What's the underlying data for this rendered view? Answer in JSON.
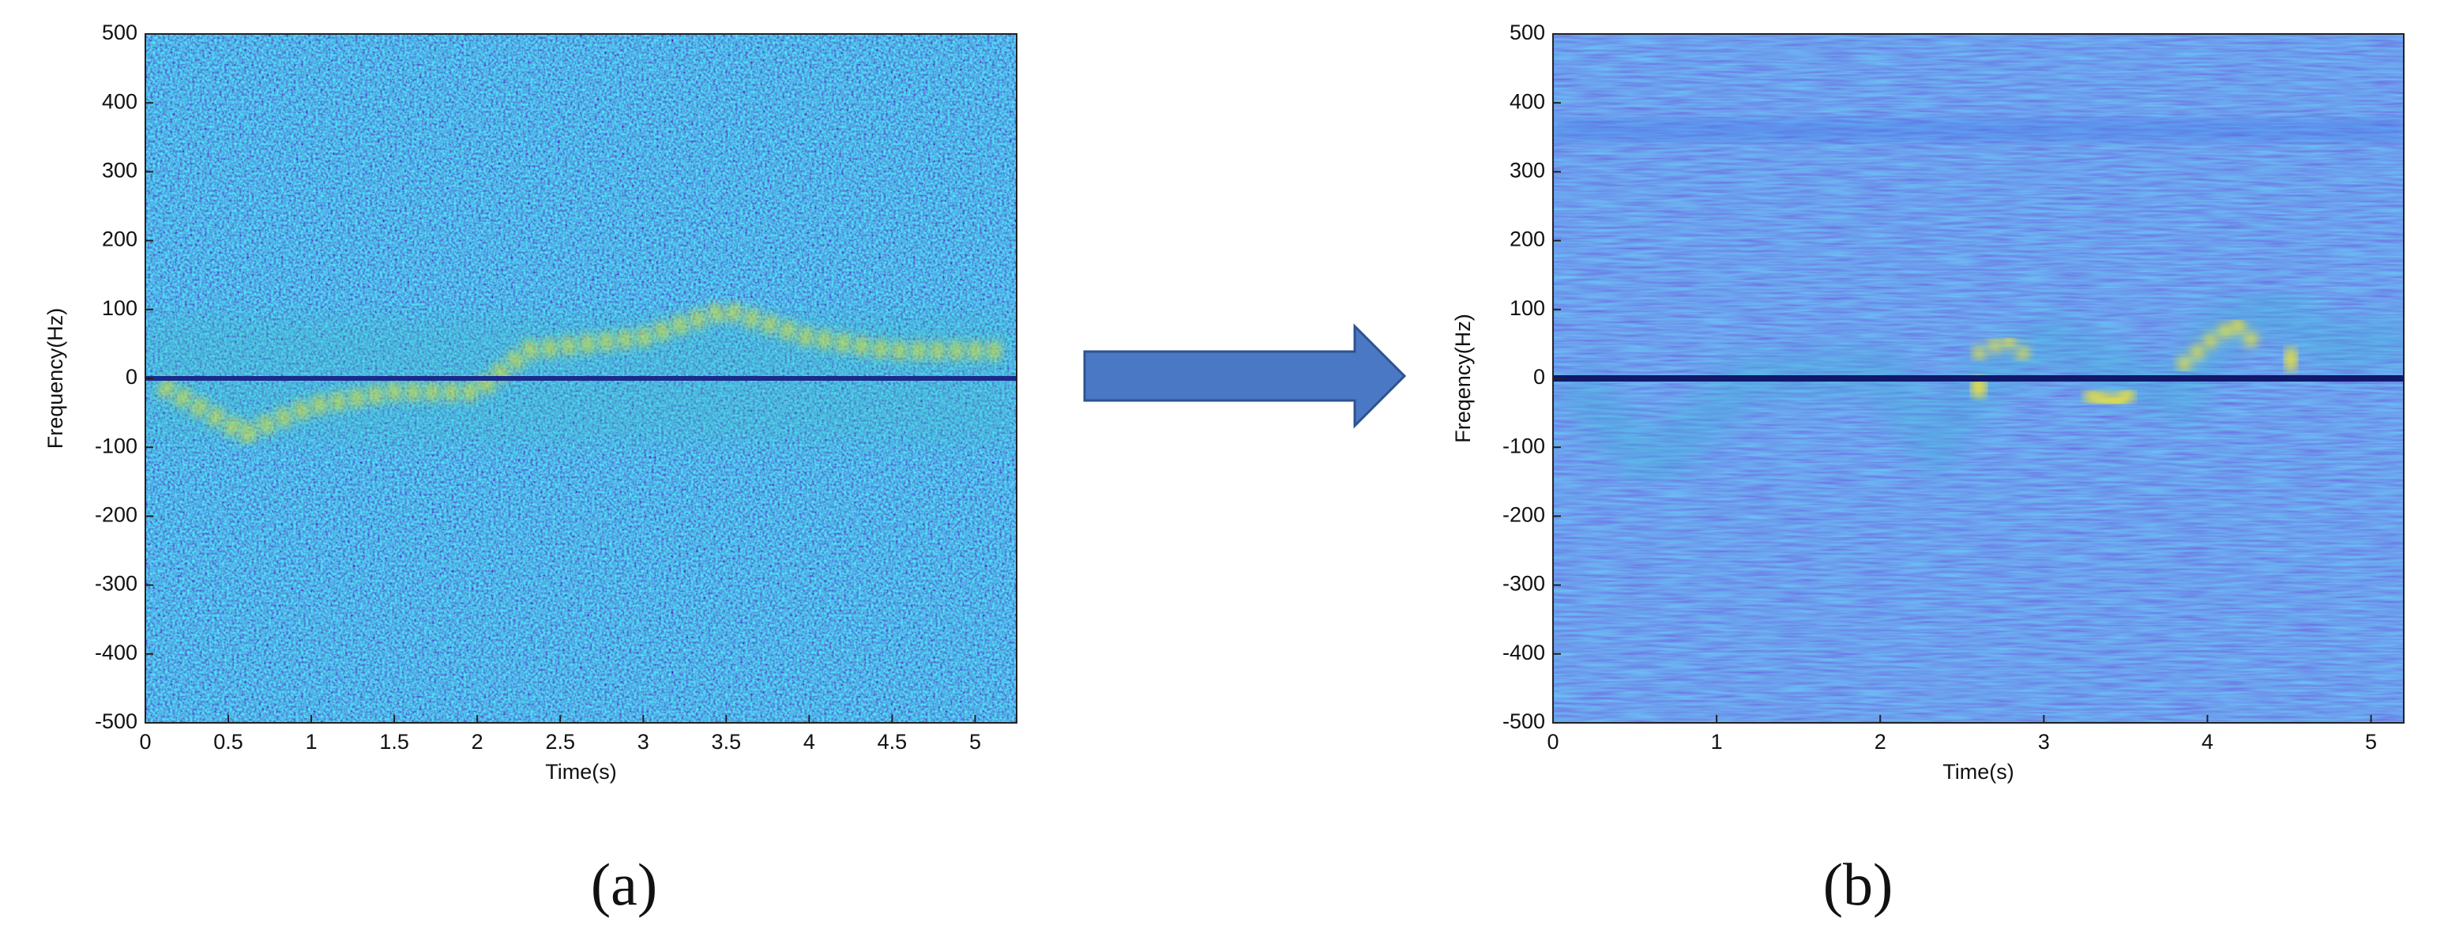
{
  "chart_data": [
    {
      "type": "spectrogram",
      "label": "(a)",
      "xlabel": "Time(s)",
      "ylabel": "Frequency(Hz)",
      "xlim": [
        0,
        5.25
      ],
      "ylim": [
        -500,
        500
      ],
      "xticks": [
        0,
        0.5,
        1,
        1.5,
        2,
        2.5,
        3,
        3.5,
        4,
        4.5,
        5
      ],
      "yticks": [
        -500,
        -400,
        -300,
        -200,
        -100,
        0,
        100,
        200,
        300,
        400,
        500
      ]
    },
    {
      "type": "spectrogram",
      "label": "(b)",
      "xlabel": "Time(s)",
      "ylabel": "Freqency(Hz)",
      "xlim": [
        0,
        5.2
      ],
      "ylim": [
        -500,
        500
      ],
      "xticks": [
        0,
        1,
        2,
        3,
        4,
        5
      ],
      "yticks": [
        -500,
        -400,
        -300,
        -200,
        -100,
        0,
        100,
        200,
        300,
        400,
        500
      ]
    }
  ]
}
